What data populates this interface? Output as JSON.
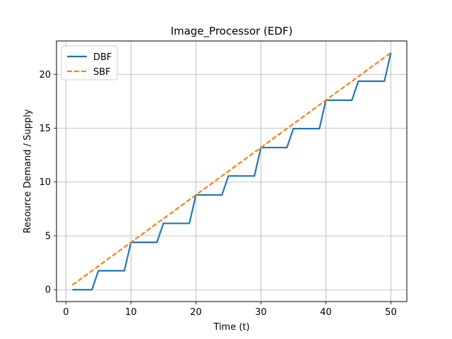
{
  "chart_data": {
    "type": "line",
    "title": "Image_Processor (EDF)",
    "xlabel": "Time (t)",
    "ylabel": "Resource Demand / Supply",
    "xlim": [
      -1.45,
      52.45
    ],
    "ylim": [
      -1.1,
      23.1
    ],
    "xticks": [
      0,
      10,
      20,
      30,
      40,
      50
    ],
    "yticks": [
      0,
      5,
      10,
      15,
      20
    ],
    "grid": true,
    "legend_position": "top-left",
    "series": [
      {
        "name": "DBF",
        "color": "#1f77b4",
        "style": "solid",
        "x": [
          1,
          4,
          5,
          9,
          10,
          14,
          15,
          19,
          20,
          24,
          25,
          29,
          30,
          34,
          35,
          39,
          40,
          44,
          45,
          49,
          50
        ],
        "y": [
          0,
          0,
          1.76,
          1.76,
          4.4,
          4.4,
          6.16,
          6.16,
          8.8,
          8.8,
          10.56,
          10.56,
          13.2,
          13.2,
          14.96,
          14.96,
          17.6,
          17.6,
          19.36,
          19.36,
          22
        ]
      },
      {
        "name": "SBF",
        "color": "#ff7f0e",
        "style": "dashed",
        "x": [
          1,
          50
        ],
        "y": [
          0.44,
          22
        ]
      }
    ]
  }
}
